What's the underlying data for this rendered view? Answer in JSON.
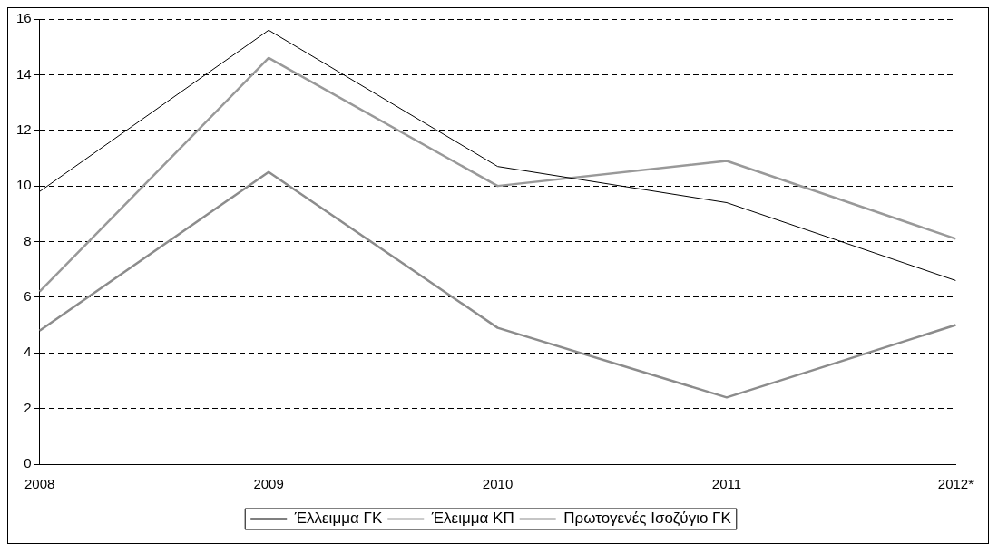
{
  "chart_data": {
    "type": "line",
    "categories": [
      "2008",
      "2009",
      "2010",
      "2011",
      "2012*"
    ],
    "series": [
      {
        "name": "Έλλειμμα ΓΚ",
        "color": "#000000",
        "values": [
          9.8,
          15.6,
          10.7,
          9.4,
          6.6
        ]
      },
      {
        "name": "Έλειμμα ΚΠ",
        "color": "#999999",
        "values": [
          6.2,
          14.6,
          10.0,
          10.9,
          8.1
        ]
      },
      {
        "name": "Πρωτογενές Ισοζύγιο ΓΚ",
        "color": "#8c8c8c",
        "values": [
          4.8,
          10.5,
          4.9,
          2.4,
          5.0
        ]
      }
    ],
    "ylim": [
      0,
      16
    ],
    "yticks": [
      0,
      2,
      4,
      6,
      8,
      10,
      12,
      14,
      16
    ],
    "grid": "y",
    "legend": "bottom",
    "marker": "none",
    "line_style": "solid"
  }
}
